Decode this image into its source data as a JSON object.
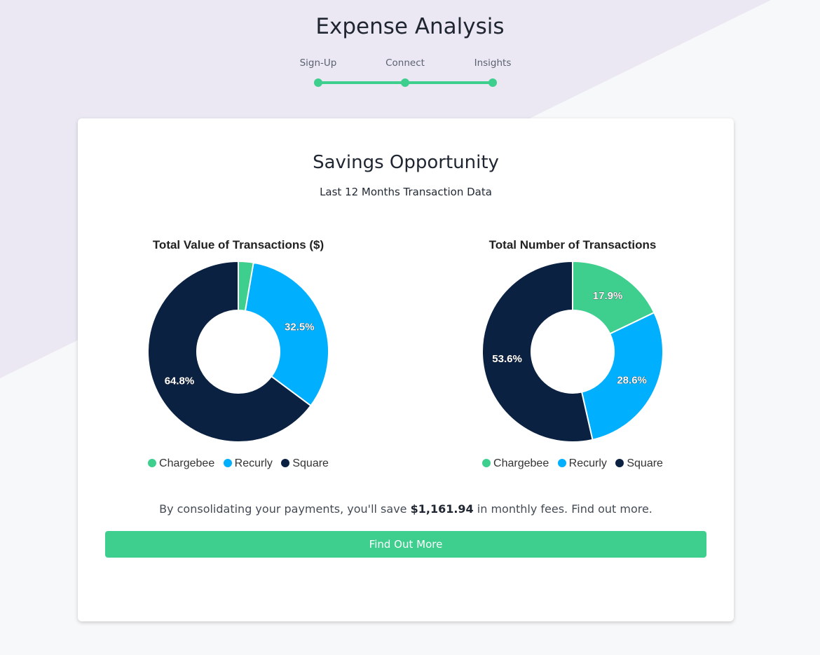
{
  "page": {
    "title": "Expense Analysis",
    "background_accent": "#ebe8f3",
    "background": "#f7f8fa"
  },
  "stepper": {
    "steps": [
      {
        "label": "Sign-Up",
        "completed": true
      },
      {
        "label": "Connect",
        "completed": true
      },
      {
        "label": "Insights",
        "completed": true
      }
    ],
    "color": "#3ecf8e"
  },
  "card": {
    "title": "Savings Opportunity",
    "subtitle": "Last 12 Months Transaction Data",
    "savings": {
      "prefix": "By consolidating your payments, you'll save ",
      "amount": "$1,161.94",
      "suffix": " in monthly fees. Find out more."
    },
    "cta_label": "Find Out More",
    "cta_color": "#3ecf8e"
  },
  "colors": {
    "Chargebee": "#3ecf8e",
    "Recurly": "#00b0ff",
    "Square": "#0a2142"
  },
  "chart_data": [
    {
      "type": "pie",
      "variant": "doughnut",
      "title": "Total Value of Transactions ($)",
      "categories": [
        "Chargebee",
        "Recurly",
        "Square"
      ],
      "values": [
        2.7,
        32.5,
        64.8
      ],
      "value_labels": [
        "",
        "32.5%",
        "64.8%"
      ],
      "legend": "bottom"
    },
    {
      "type": "pie",
      "variant": "doughnut",
      "title": "Total Number of Transactions",
      "categories": [
        "Chargebee",
        "Recurly",
        "Square"
      ],
      "values": [
        17.9,
        28.6,
        53.6
      ],
      "value_labels": [
        "17.9%",
        "28.6%",
        "53.6%"
      ],
      "legend": "bottom"
    }
  ]
}
